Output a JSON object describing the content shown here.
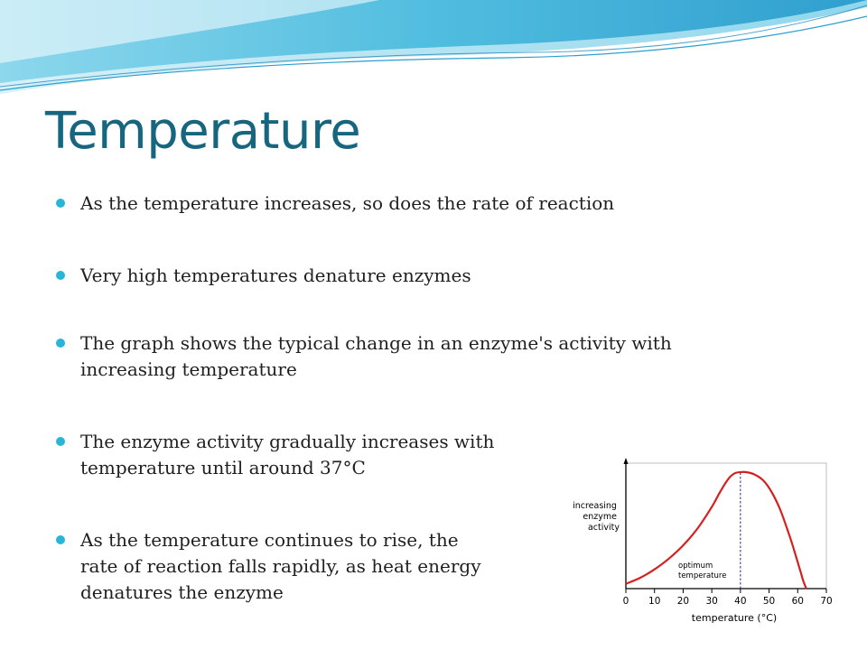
{
  "slide": {
    "title": "Temperature",
    "accent_color": "#29b5d9",
    "title_color": "#17667f"
  },
  "bullets": [
    {
      "lines": [
        "As the temperature increases, so does the rate of reaction"
      ]
    },
    {
      "lines": [
        "Very high temperatures denature enzymes"
      ]
    },
    {
      "lines": [
        "The graph shows the typical change in an enzyme's activity with",
        "increasing temperature"
      ]
    },
    {
      "lines": [
        "The enzyme activity gradually increases with",
        "temperature until around 37°C"
      ]
    },
    {
      "lines": [
        "As the temperature continues to rise, the",
        "rate of reaction falls rapidly, as heat energy",
        "denatures the enzyme"
      ]
    }
  ],
  "chart_data": {
    "type": "line",
    "xlabel": "temperature (°C)",
    "ylabel_lines": [
      "increasing",
      "enzyme",
      "activity"
    ],
    "x_ticks": [
      0,
      10,
      20,
      30,
      40,
      50,
      60,
      70
    ],
    "xlim": [
      0,
      70
    ],
    "ylim": [
      0,
      1
    ],
    "series": [
      {
        "color": "#d62020",
        "x": [
          0,
          5,
          10,
          15,
          20,
          25,
          30,
          33,
          36,
          38,
          40,
          42,
          45,
          48,
          51,
          54,
          57,
          59,
          61,
          62,
          63
        ],
        "y": [
          0.04,
          0.09,
          0.16,
          0.25,
          0.36,
          0.5,
          0.68,
          0.81,
          0.92,
          0.96,
          0.97,
          0.97,
          0.95,
          0.9,
          0.8,
          0.65,
          0.45,
          0.3,
          0.14,
          0.06,
          0.0
        ]
      }
    ],
    "optimum": {
      "x": 40,
      "label_lines": [
        "optimum",
        "temperature"
      ]
    },
    "grid": false
  }
}
